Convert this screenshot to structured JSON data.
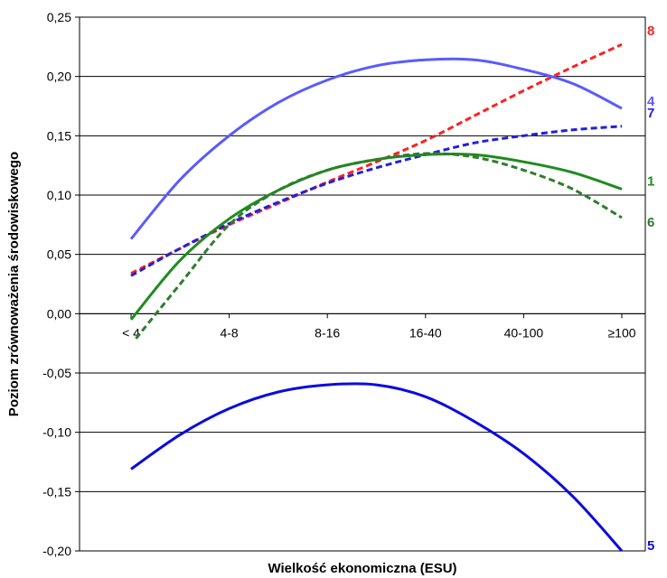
{
  "chart_data": {
    "type": "line",
    "title": "",
    "xlabel": "Wielkość ekonomiczna (ESU)",
    "ylabel": "Poziom zrównoważenia środowiskowego",
    "categories": [
      "< 4",
      "4-8",
      "8-16",
      "16-40",
      "40-100",
      "≥100"
    ],
    "ylim": [
      -0.2,
      0.25
    ],
    "yticks": [
      0.25,
      0.2,
      0.15,
      0.1,
      0.05,
      0.0,
      -0.05,
      -0.1,
      -0.15,
      -0.2
    ],
    "ytick_labels": [
      "0,25",
      "0,20",
      "0,15",
      "0,10",
      "0,05",
      "0,00",
      "-0,05",
      "-0,10",
      "-0,15",
      "-0,20"
    ],
    "grid": "horizontal",
    "legend": "series labels at right end of lines",
    "series": [
      {
        "name": "8",
        "color": "#ff2020",
        "style": "dashed",
        "x": [
          0.0,
          0.5,
          1.0,
          1.5,
          2.0,
          2.5,
          3.0,
          3.5,
          4.0,
          4.5,
          5.0
        ],
        "values": [
          0.034,
          0.055,
          0.075,
          0.093,
          0.111,
          0.128,
          0.146,
          0.167,
          0.188,
          0.208,
          0.227
        ]
      },
      {
        "name": "4",
        "color": "#5a5aff",
        "style": "solid",
        "x": [
          0.0,
          0.5,
          1.0,
          1.5,
          2.0,
          2.5,
          3.0,
          3.5,
          4.0,
          4.5,
          5.0
        ],
        "values": [
          0.063,
          0.113,
          0.15,
          0.178,
          0.197,
          0.209,
          0.214,
          0.214,
          0.206,
          0.194,
          0.173
        ]
      },
      {
        "name": "7",
        "color": "#2020e0",
        "style": "dashed",
        "x": [
          0.0,
          0.5,
          1.0,
          1.5,
          2.0,
          2.5,
          3.0,
          3.5,
          4.0,
          4.5,
          5.0
        ],
        "values": [
          0.032,
          0.055,
          0.076,
          0.094,
          0.11,
          0.123,
          0.134,
          0.144,
          0.15,
          0.155,
          0.158
        ]
      },
      {
        "name": "1",
        "color": "#1e8c1e",
        "style": "solid",
        "x": [
          0.0,
          0.5,
          1.0,
          1.5,
          2.0,
          2.5,
          3.0,
          3.5,
          4.0,
          4.5,
          5.0
        ],
        "values": [
          -0.005,
          0.045,
          0.08,
          0.104,
          0.121,
          0.13,
          0.134,
          0.134,
          0.128,
          0.119,
          0.105
        ]
      },
      {
        "name": "6",
        "color": "#2e7d2e",
        "style": "dashed",
        "x": [
          0.05,
          0.5,
          1.0,
          1.5,
          2.0,
          2.5,
          3.0,
          3.5,
          4.0,
          4.5,
          5.0
        ],
        "values": [
          -0.021,
          0.025,
          0.075,
          0.104,
          0.121,
          0.13,
          0.135,
          0.132,
          0.121,
          0.105,
          0.081
        ]
      },
      {
        "name": "5",
        "color": "#0b0be0",
        "style": "solid",
        "x": [
          0.0,
          0.5,
          1.0,
          1.5,
          2.0,
          2.5,
          3.0,
          3.5,
          4.0,
          4.5,
          5.0
        ],
        "values": [
          -0.131,
          -0.102,
          -0.08,
          -0.066,
          -0.06,
          -0.06,
          -0.07,
          -0.091,
          -0.118,
          -0.154,
          -0.2
        ]
      }
    ]
  }
}
